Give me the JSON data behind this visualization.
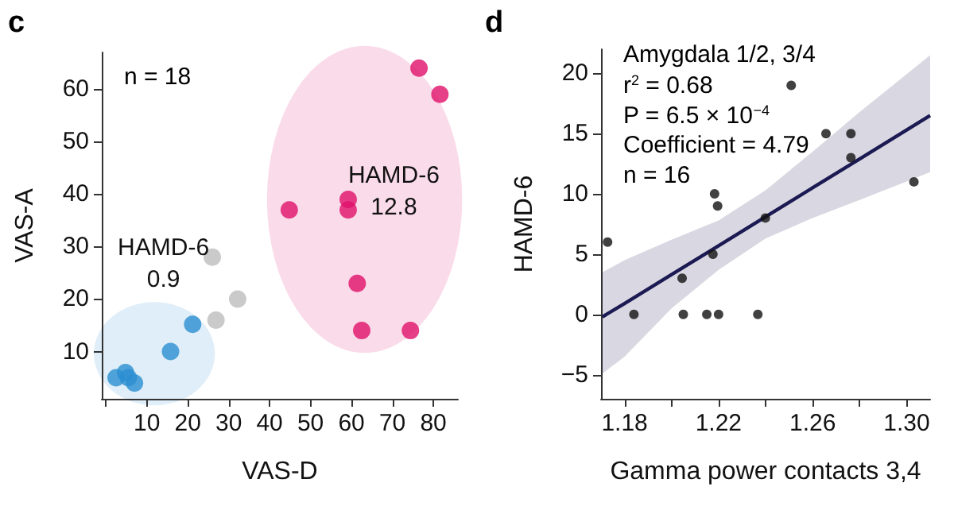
{
  "chart_data": [
    {
      "type": "scatter",
      "title": "c",
      "xlabel": "VAS-D",
      "ylabel": "VAS-A",
      "xlim": [
        -1,
        86
      ],
      "ylim": [
        1,
        67
      ],
      "xticks": [
        {
          "value": 0,
          "label": null
        },
        10,
        20,
        30,
        40,
        50,
        60,
        70,
        80
      ],
      "yticks": [
        10,
        20,
        30,
        40,
        50,
        60
      ],
      "grid": false,
      "marker": "circle",
      "annotations": [
        "n = 18",
        "HAMD-6\n0.9",
        "HAMD-6\n12.8"
      ],
      "series": [
        {
          "color": "#2b8fd1",
          "x": [
            2.5,
            4.8,
            5.5,
            7,
            15.8,
            21.2
          ],
          "values": [
            5,
            6,
            5,
            4,
            10,
            15.2
          ]
        },
        {
          "color": "#bdbdbd",
          "x": [
            26,
            32.2,
            26.9
          ],
          "values": [
            28,
            20,
            16
          ]
        },
        {
          "color": "#e0106a",
          "x": [
            44.8,
            59.2,
            59.2,
            61.4,
            62.5,
            74.4,
            76.5,
            81.6
          ],
          "values": [
            37,
            39,
            37,
            23,
            14,
            14,
            64,
            59
          ]
        }
      ]
    },
    {
      "type": "scatter",
      "title": "d",
      "xlabel": "Gamma power contacts 3,4",
      "ylabel": "HAMD-6",
      "xlim": [
        1.17,
        1.31
      ],
      "ylim": [
        -7,
        22
      ],
      "xticks": [
        1.18,
        {
          "value": 1.2,
          "label": null
        },
        1.22,
        {
          "value": 1.24,
          "label": null
        },
        1.26,
        {
          "value": 1.28,
          "label": null
        },
        {
          "value": 1.3,
          "label": "1.30"
        }
      ],
      "yticks": [
        {
          "value": -5,
          "label": "−5"
        },
        0,
        5,
        10,
        15,
        20
      ],
      "grid": false,
      "marker": "circle",
      "annotations": [
        "Amygdala 1/2, 3/4",
        "r$^{2}$ = 0.68",
        "P = 6.5 × 10$^{−4}$",
        "Coefficient = 4.79",
        "n = 16"
      ],
      "series": [
        {
          "color": "#111111",
          "x": [
            1.1728,
            1.184,
            1.2045,
            1.205,
            1.215,
            1.2176,
            1.2183,
            1.2196,
            1.22,
            1.2367,
            1.2399,
            1.2509,
            1.2657,
            1.2763,
            1.2763,
            1.3031
          ],
          "values": [
            6,
            0,
            3,
            0,
            0,
            5,
            10,
            9,
            0,
            0,
            8,
            19,
            15,
            15,
            13,
            11
          ]
        },
        {
          "type": "line",
          "marker": "none",
          "line_style": "solid",
          "color": "#1c1a52",
          "x": [
            1.1706,
            1.18,
            1.2,
            1.22,
            1.24,
            1.26,
            1.28,
            1.31
          ],
          "values": [
            -0.2,
            0.9,
            3.3,
            5.7,
            8.1,
            10.5,
            12.9,
            16.5
          ],
          "lower": [
            -4.9,
            -3.5,
            0.5,
            3.7,
            6.3,
            8,
            9.5,
            11.8
          ],
          "upper": [
            3.5,
            4.5,
            6.2,
            7.8,
            10.3,
            13.5,
            16.8,
            21.5
          ]
        }
      ]
    }
  ]
}
